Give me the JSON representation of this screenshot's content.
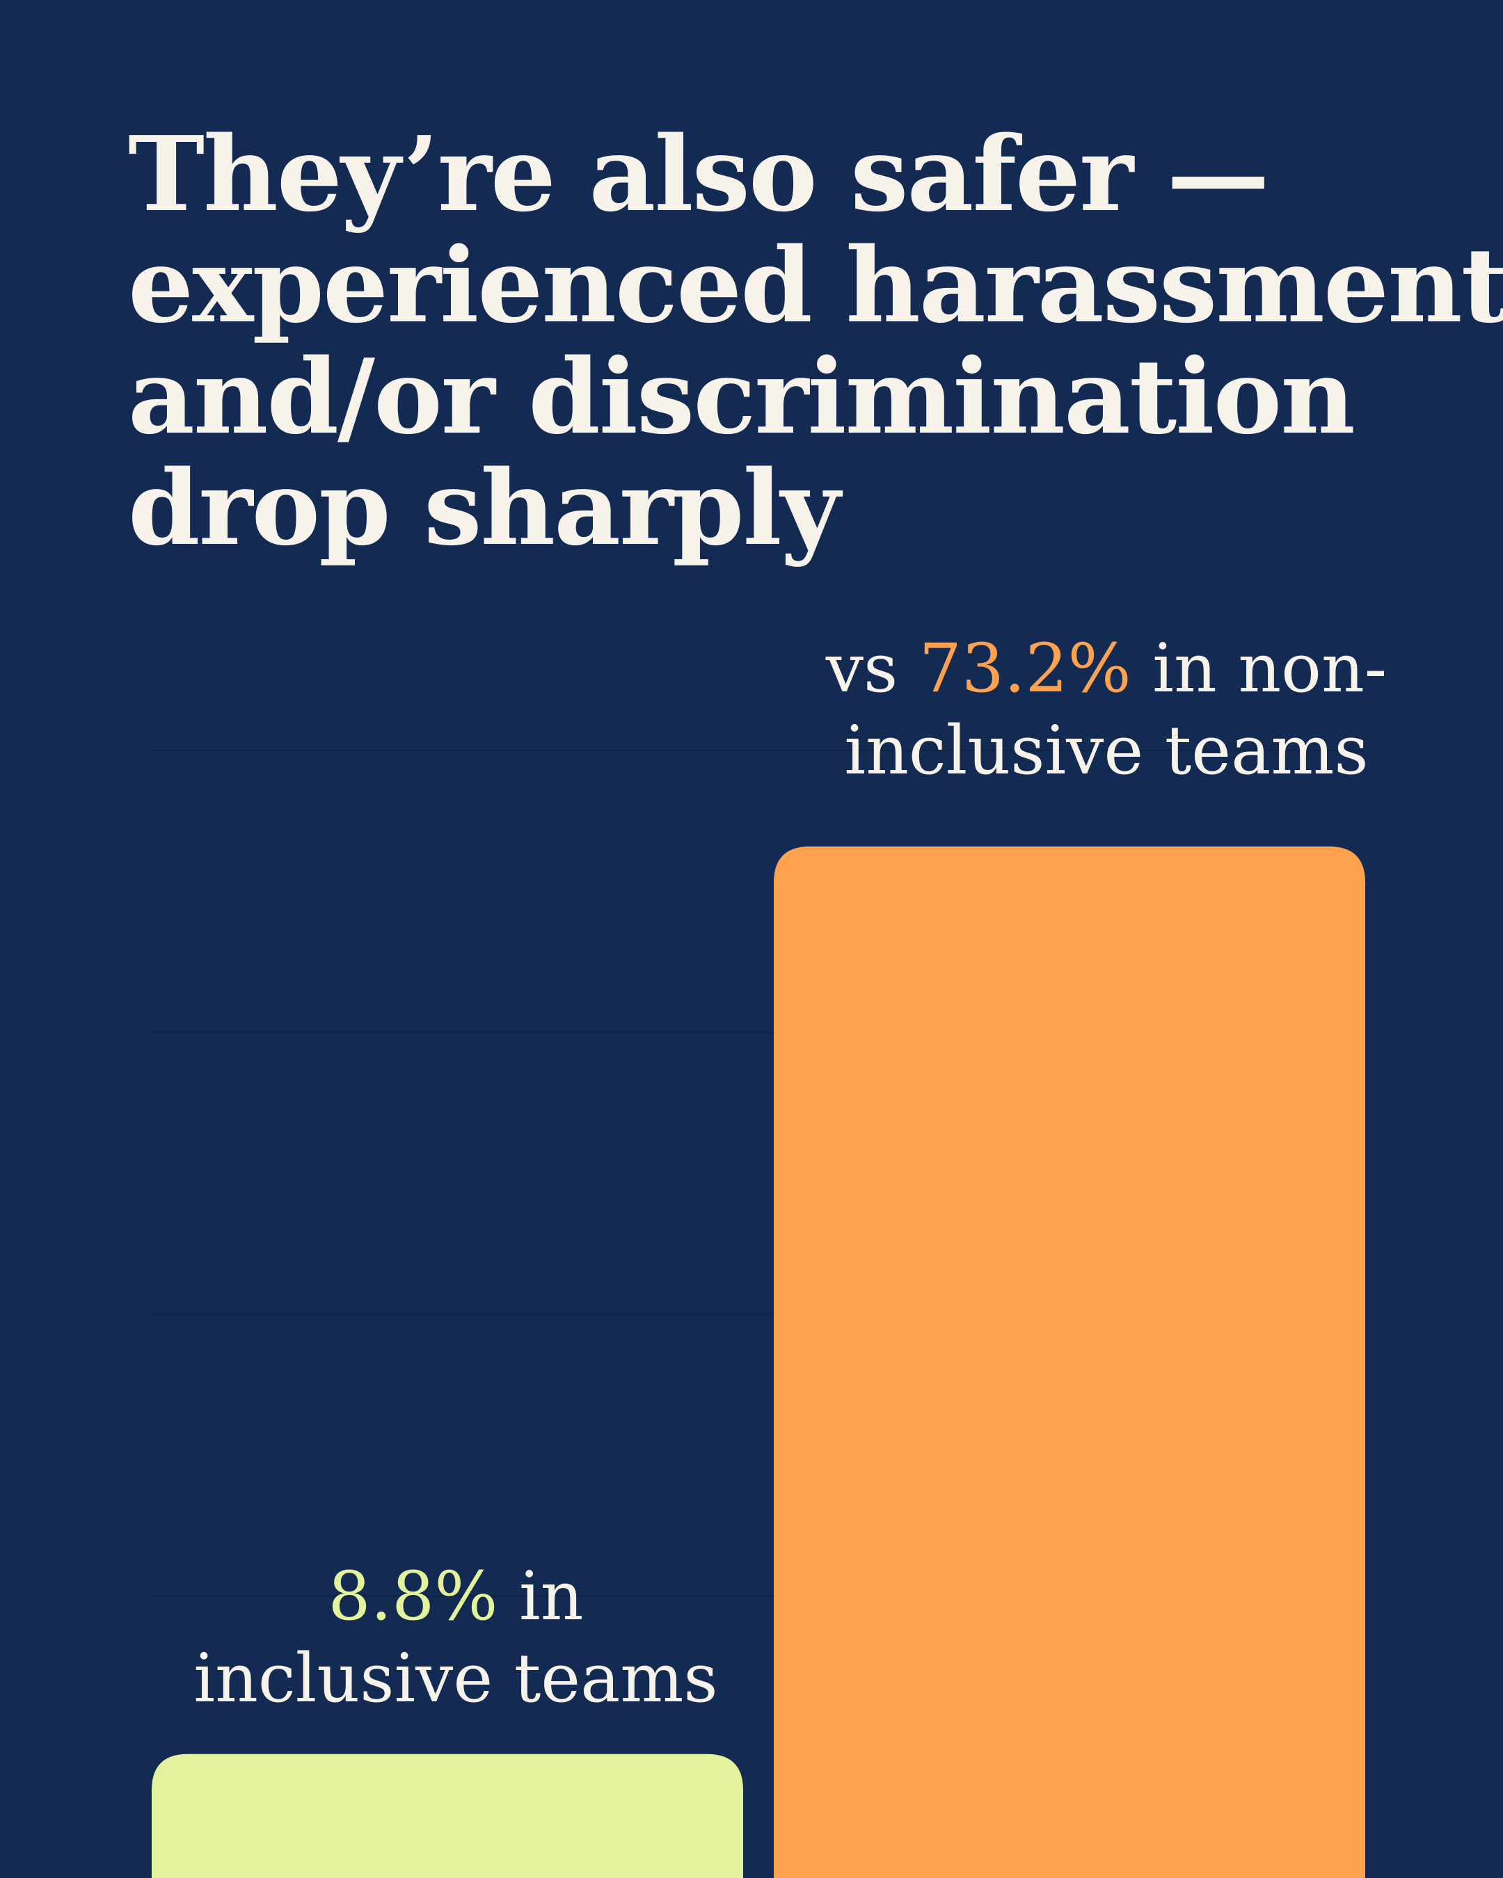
{
  "colors": {
    "background": "#132b53",
    "text": "#f7f3ea",
    "gridline": "#0f2546",
    "inclusive": "#e2f39b",
    "non_inclusive": "#ffa24f"
  },
  "title_lines": [
    "They’re also safer —",
    "experienced harassment",
    "and/or discrimination",
    "drop sharply"
  ],
  "labels": {
    "non_inclusive": {
      "prefix": "vs ",
      "value": "73.2%",
      "line1_suffix": " in non-",
      "line2": "inclusive teams"
    },
    "inclusive": {
      "value": "8.8%",
      "line1_suffix": " in",
      "line2": "inclusive teams"
    }
  },
  "chart_data": {
    "type": "bar",
    "title": "They’re also safer — experienced harassment and/or discrimination drop sharply",
    "categories": [
      "inclusive teams",
      "non-inclusive teams"
    ],
    "values": [
      8.8,
      73.2
    ],
    "unit": "%",
    "grid": true,
    "xlabel": "",
    "ylabel": "",
    "ylim": [
      0,
      80
    ],
    "gridlines": [
      20,
      40,
      60,
      80
    ]
  }
}
